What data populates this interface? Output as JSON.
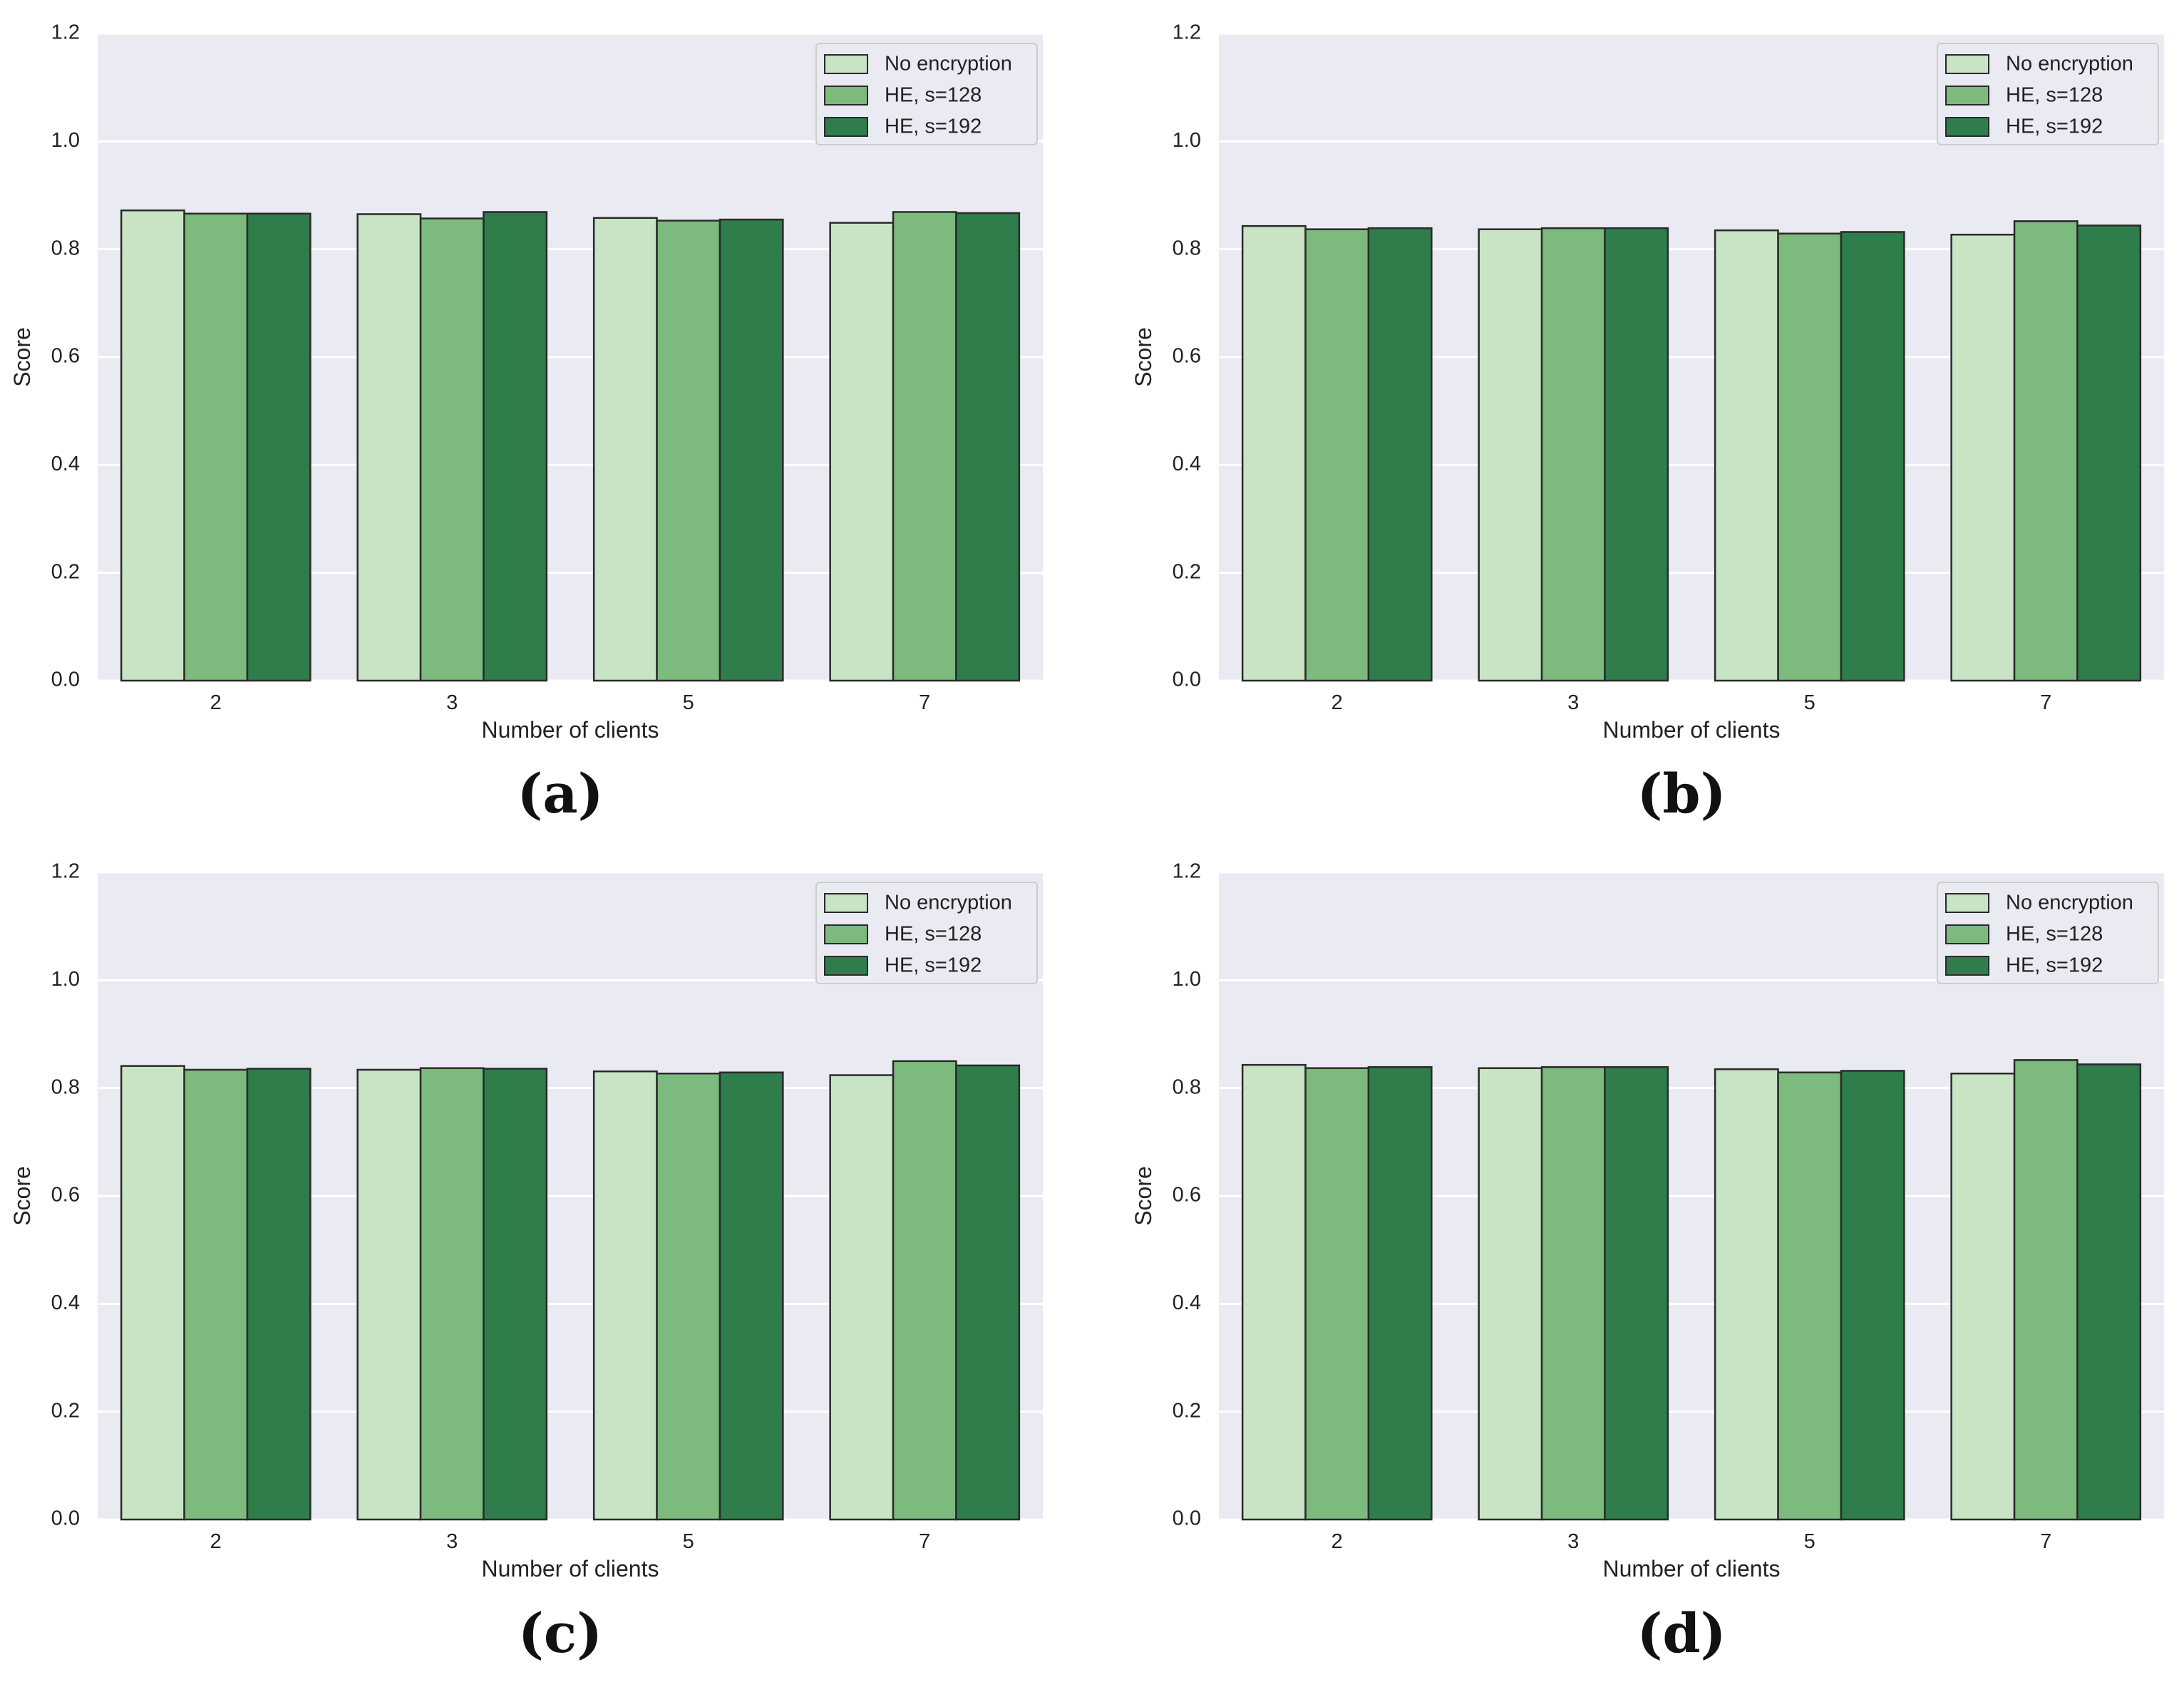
{
  "colors": {
    "background": "#eaeaf2",
    "gridline": "#ffffff",
    "bar_edge": "#2a2a2a",
    "series": [
      "#c9e4c5",
      "#7dba7e",
      "#2e7d4a"
    ]
  },
  "chart_data": [
    {
      "type": "bar",
      "caption": "(a)",
      "xlabel": "Number of clients",
      "ylabel": "Score",
      "ylim": [
        0,
        1.2
      ],
      "yticks": [
        "0.0",
        "0.2",
        "0.4",
        "0.6",
        "0.8",
        "1.0",
        "1.2"
      ],
      "categories": [
        "2",
        "3",
        "5",
        "7"
      ],
      "legend_position": "top-right",
      "series": [
        {
          "name": "No encryption",
          "values": [
            0.872,
            0.865,
            0.858,
            0.849
          ]
        },
        {
          "name": "HE, s=128",
          "values": [
            0.866,
            0.857,
            0.853,
            0.869
          ]
        },
        {
          "name": "HE, s=192",
          "values": [
            0.866,
            0.869,
            0.855,
            0.867
          ]
        }
      ]
    },
    {
      "type": "bar",
      "caption": "(b)",
      "xlabel": "Number of clients",
      "ylabel": "Score",
      "ylim": [
        0,
        1.2
      ],
      "yticks": [
        "0.0",
        "0.2",
        "0.4",
        "0.6",
        "0.8",
        "1.0",
        "1.2"
      ],
      "categories": [
        "2",
        "3",
        "5",
        "7"
      ],
      "legend_position": "top-right",
      "series": [
        {
          "name": "No encryption",
          "values": [
            0.843,
            0.837,
            0.835,
            0.827
          ]
        },
        {
          "name": "HE, s=128",
          "values": [
            0.837,
            0.839,
            0.829,
            0.852
          ]
        },
        {
          "name": "HE, s=192",
          "values": [
            0.839,
            0.839,
            0.832,
            0.844
          ]
        }
      ]
    },
    {
      "type": "bar",
      "caption": "(c)",
      "xlabel": "Number of clients",
      "ylabel": "Score",
      "ylim": [
        0,
        1.2
      ],
      "yticks": [
        "0.0",
        "0.2",
        "0.4",
        "0.6",
        "0.8",
        "1.0",
        "1.2"
      ],
      "categories": [
        "2",
        "3",
        "5",
        "7"
      ],
      "legend_position": "top-right",
      "series": [
        {
          "name": "No encryption",
          "values": [
            0.841,
            0.834,
            0.831,
            0.824
          ]
        },
        {
          "name": "HE, s=128",
          "values": [
            0.834,
            0.837,
            0.827,
            0.85
          ]
        },
        {
          "name": "HE, s=192",
          "values": [
            0.836,
            0.836,
            0.829,
            0.842
          ]
        }
      ]
    },
    {
      "type": "bar",
      "caption": "(d)",
      "xlabel": "Number of clients",
      "ylabel": "Score",
      "ylim": [
        0,
        1.2
      ],
      "yticks": [
        "0.0",
        "0.2",
        "0.4",
        "0.6",
        "0.8",
        "1.0",
        "1.2"
      ],
      "categories": [
        "2",
        "3",
        "5",
        "7"
      ],
      "legend_position": "top-right",
      "series": [
        {
          "name": "No encryption",
          "values": [
            0.843,
            0.837,
            0.835,
            0.827
          ]
        },
        {
          "name": "HE, s=128",
          "values": [
            0.837,
            0.839,
            0.829,
            0.852
          ]
        },
        {
          "name": "HE, s=192",
          "values": [
            0.839,
            0.839,
            0.832,
            0.844
          ]
        }
      ]
    }
  ]
}
